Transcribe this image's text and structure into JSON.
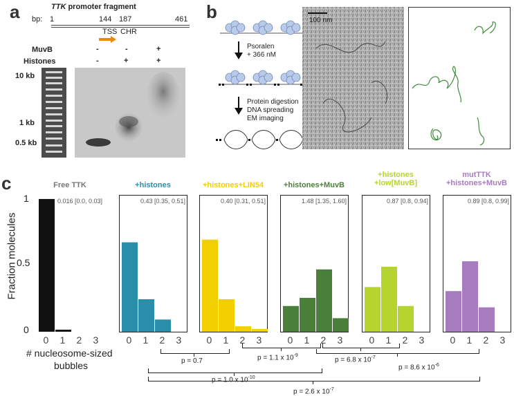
{
  "panel_a": {
    "letter": "a",
    "title_gene": "TTK",
    "title_rest": " promoter fragment",
    "bp_label": "bp:",
    "bp_positions": [
      "1",
      "144",
      "187",
      "461"
    ],
    "tss_label": "TSS",
    "chr_label": "CHR",
    "row_labels": [
      "MuvB",
      "Histones"
    ],
    "lane_signs": [
      [
        "-",
        "-"
      ],
      [
        "-",
        "+"
      ],
      [
        "+",
        "+"
      ]
    ],
    "size_markers": [
      "10 kb",
      "1 kb",
      "0.5 kb"
    ]
  },
  "panel_b": {
    "letter": "b",
    "step1": [
      "Psoralen",
      "+ 366 nM"
    ],
    "step2": [
      "Protein digestion",
      "DNA spreading",
      "EM imaging"
    ],
    "scale_bar": "100 nm"
  },
  "panel_c": {
    "letter": "c",
    "ylabel": "Fraction molecules",
    "xlabel": [
      "# nucleosome-sized",
      "bubbles"
    ],
    "yticks": [
      "1",
      "0.5",
      "0"
    ],
    "xticks": [
      "0",
      "1",
      "2",
      "3"
    ],
    "pvalues": [
      "p = 0.7",
      "p = 1.1 x 10",
      "-9",
      "p = 6.8 x 10",
      "-7",
      "p = 8.6 x 10",
      "-6",
      "p = 1.0 x 10",
      "-10",
      "p = 2.6 x 10",
      "-7"
    ]
  },
  "chart_data": {
    "type": "bar",
    "ylabel": "Fraction molecules",
    "xlabel": "# nucleosome-sized bubbles",
    "ylim": [
      0,
      1
    ],
    "categories": [
      "0",
      "1",
      "2",
      "3"
    ],
    "series": [
      {
        "name": "Free TTK",
        "color": "#111111",
        "stat": "0.016 [0.0, 0.03]",
        "values": [
          0.98,
          0.015,
          0,
          0
        ]
      },
      {
        "name": "+histones",
        "color": "#2a8eab",
        "stat": "0.43 [0.35, 0.51]",
        "values": [
          0.66,
          0.24,
          0.09,
          0
        ]
      },
      {
        "name": "+histones+LIN54",
        "color": "#f2d000",
        "stat": "0.40 [0.31, 0.51]",
        "values": [
          0.68,
          0.24,
          0.04,
          0.02
        ]
      },
      {
        "name": "+histones+MuvB",
        "color": "#4a7f3a",
        "stat": "1.48 [1.35, 1.60]",
        "values": [
          0.19,
          0.25,
          0.46,
          0.1
        ]
      },
      {
        "name": "+histones\n+low[MuvB]",
        "color": "#b6d42e",
        "stat": "0.87 [0.8, 0.94]",
        "values": [
          0.33,
          0.48,
          0.19,
          0
        ]
      },
      {
        "name": "mutTTK\n+histones+MuvB",
        "color": "#a77bbf",
        "stat": "0.89 [0.8, 0.99]",
        "values": [
          0.3,
          0.52,
          0.18,
          0
        ]
      }
    ]
  }
}
